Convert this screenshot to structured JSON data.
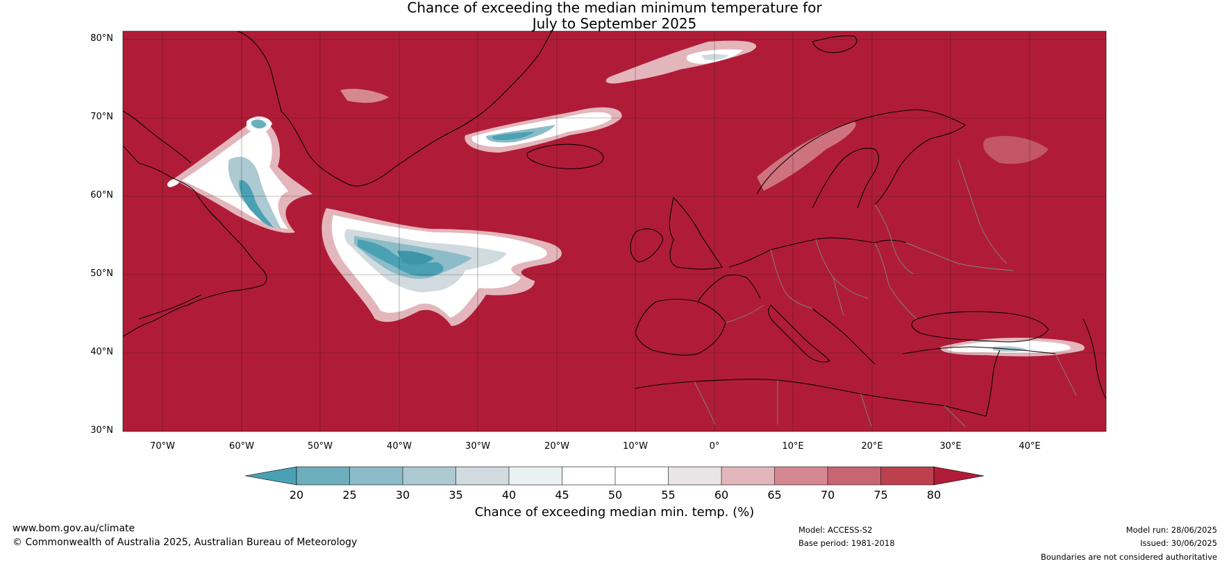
{
  "title": {
    "line1": "Chance of exceeding the median minimum temperature for",
    "line2": "July to September 2025"
  },
  "map": {
    "lat_labels": [
      "80°N",
      "70°N",
      "60°N",
      "50°N",
      "40°N",
      "30°N"
    ],
    "lon_labels": [
      "70°W",
      "60°W",
      "50°W",
      "40°W",
      "30°W",
      "20°W",
      "10°W",
      "0°",
      "10°E",
      "20°E",
      "30°E",
      "40°E"
    ],
    "colors": {
      "background": "#b01c37",
      "land_outline": "#000000",
      "borders": "#808080",
      "gridlines": "#1a1a1a"
    }
  },
  "colorbar": {
    "ticks": [
      "20",
      "25",
      "30",
      "35",
      "40",
      "45",
      "50",
      "55",
      "60",
      "65",
      "70",
      "75",
      "80"
    ],
    "colors": [
      "#4aa1b4",
      "#6daebc",
      "#8cbcc7",
      "#adc9d1",
      "#d0dadf",
      "#eaf1f2",
      "#ffffff",
      "#ffffff",
      "#e9e4e5",
      "#e3b6bc",
      "#d68891",
      "#c86573",
      "#bd404f",
      "#b01c37"
    ],
    "label": "Chance of exceeding median min. temp. (%)"
  },
  "footer": {
    "left_line1": "www.bom.gov.au/climate",
    "left_line2": "© Commonwealth of Australia 2025, Australian Bureau of Meteorology",
    "model": "Model: ACCESS-S2",
    "base_period": "Base period: 1981-2018",
    "model_run": "Model run: 28/06/2025",
    "issued": "Issued: 30/06/2025",
    "disclaimer": "Boundaries are not considered authoritative"
  }
}
